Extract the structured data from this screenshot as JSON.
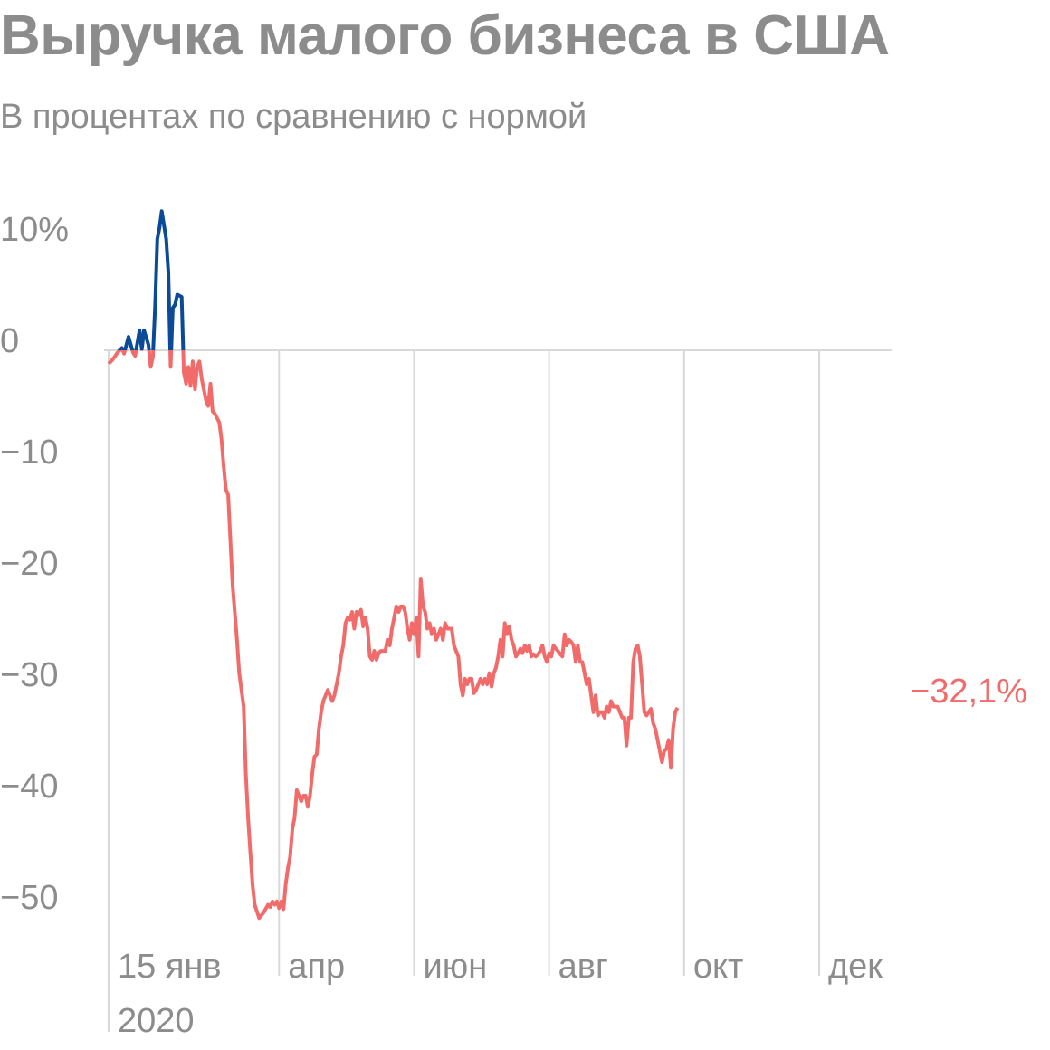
{
  "title": "Выручка малого бизнеса в США",
  "subtitle": "В процентах по сравнению с нормой",
  "colors": {
    "positive": "#0b4a96",
    "negative": "#f26b6b",
    "text": "#8c8c8c",
    "grid": "#d9d9d9"
  },
  "chart_data": {
    "type": "line",
    "title": "Выручка малого бизнеса в США",
    "subtitle": "В процентах по сравнению с нормой",
    "ylim": [
      -55,
      13
    ],
    "y_ticks": [
      {
        "value": 10,
        "label": "10%"
      },
      {
        "value": 0,
        "label": "0"
      },
      {
        "value": -10,
        "label": "−10"
      },
      {
        "value": -20,
        "label": "−20"
      },
      {
        "value": -30,
        "label": "−30"
      },
      {
        "value": -40,
        "label": "−40"
      },
      {
        "value": -50,
        "label": "−50"
      }
    ],
    "x_ticks": [
      {
        "date": "2020-01-15",
        "label": "15 янв",
        "sublabel": "2020"
      },
      {
        "date": "2020-04-01",
        "label": "апр"
      },
      {
        "date": "2020-06-01",
        "label": "июн"
      },
      {
        "date": "2020-08-01",
        "label": "авг"
      },
      {
        "date": "2020-10-01",
        "label": "окт"
      },
      {
        "date": "2020-12-01",
        "label": "дек"
      }
    ],
    "end_label": "−32,1%",
    "series": [
      {
        "values": [
          [
            "2020-01-15",
            -1.2
          ],
          [
            "2020-01-17",
            -0.8
          ],
          [
            "2020-01-19",
            -0.2
          ],
          [
            "2020-01-21",
            0.2
          ],
          [
            "2020-01-22",
            -0.3
          ],
          [
            "2020-01-24",
            1.2
          ],
          [
            "2020-01-26",
            -0.2
          ],
          [
            "2020-01-27",
            -0.5
          ],
          [
            "2020-01-29",
            1.8
          ],
          [
            "2020-01-30",
            0.1
          ],
          [
            "2020-01-31",
            1.8
          ],
          [
            "2020-02-02",
            0.5
          ],
          [
            "2020-02-03",
            -1.5
          ],
          [
            "2020-02-04",
            -0.6
          ],
          [
            "2020-02-05",
            4
          ],
          [
            "2020-02-06",
            10
          ],
          [
            "2020-02-07",
            11
          ],
          [
            "2020-02-08",
            12.5
          ],
          [
            "2020-02-10",
            10
          ],
          [
            "2020-02-11",
            7
          ],
          [
            "2020-02-12",
            -1.5
          ],
          [
            "2020-02-13",
            3.8
          ],
          [
            "2020-02-14",
            4.1
          ],
          [
            "2020-02-15",
            5
          ],
          [
            "2020-02-16",
            4.9
          ],
          [
            "2020-02-17",
            4.8
          ],
          [
            "2020-02-18",
            -2
          ],
          [
            "2020-02-19",
            -3
          ],
          [
            "2020-02-20",
            -1.5
          ],
          [
            "2020-02-21",
            -3.2
          ],
          [
            "2020-02-22",
            -1
          ],
          [
            "2020-02-23",
            -3.5
          ],
          [
            "2020-02-24",
            -1.5
          ],
          [
            "2020-02-25",
            -1
          ],
          [
            "2020-02-26",
            -2.5
          ],
          [
            "2020-02-28",
            -4.5
          ],
          [
            "2020-02-29",
            -5
          ],
          [
            "2020-03-01",
            -3
          ],
          [
            "2020-03-02",
            -5.5
          ],
          [
            "2020-03-03",
            -5.7
          ],
          [
            "2020-03-05",
            -6.5
          ],
          [
            "2020-03-06",
            -8
          ],
          [
            "2020-03-07",
            -10.5
          ],
          [
            "2020-03-08",
            -12.5
          ],
          [
            "2020-03-09",
            -13
          ],
          [
            "2020-03-10",
            -17
          ],
          [
            "2020-03-11",
            -21
          ],
          [
            "2020-03-13",
            -26
          ],
          [
            "2020-03-14",
            -29
          ],
          [
            "2020-03-16",
            -32
          ],
          [
            "2020-03-17",
            -38
          ],
          [
            "2020-03-18",
            -42
          ],
          [
            "2020-03-19",
            -45
          ],
          [
            "2020-03-20",
            -48
          ],
          [
            "2020-03-21",
            -49.8
          ],
          [
            "2020-03-23",
            -51
          ],
          [
            "2020-03-25",
            -50.5
          ],
          [
            "2020-03-27",
            -49.8
          ],
          [
            "2020-03-28",
            -50
          ],
          [
            "2020-03-29",
            -49.5
          ],
          [
            "2020-03-30",
            -49.8
          ],
          [
            "2020-03-31",
            -49.5
          ],
          [
            "2020-04-01",
            -50.1
          ],
          [
            "2020-04-02",
            -49.5
          ],
          [
            "2020-04-03",
            -50.2
          ],
          [
            "2020-04-04",
            -48
          ],
          [
            "2020-04-05",
            -46.5
          ],
          [
            "2020-04-06",
            -45.5
          ],
          [
            "2020-04-07",
            -43
          ],
          [
            "2020-04-08",
            -42
          ],
          [
            "2020-04-09",
            -39.5
          ],
          [
            "2020-04-10",
            -40
          ],
          [
            "2020-04-11",
            -40.5
          ],
          [
            "2020-04-12",
            -40
          ],
          [
            "2020-04-13",
            -40
          ],
          [
            "2020-04-14",
            -41
          ],
          [
            "2020-04-15",
            -40
          ],
          [
            "2020-04-16",
            -38
          ],
          [
            "2020-04-17",
            -36.5
          ],
          [
            "2020-04-18",
            -36.3
          ],
          [
            "2020-04-19",
            -34
          ],
          [
            "2020-04-20",
            -32.5
          ],
          [
            "2020-04-21",
            -31.5
          ],
          [
            "2020-04-22",
            -31
          ],
          [
            "2020-04-23",
            -30.5
          ],
          [
            "2020-04-24",
            -31
          ],
          [
            "2020-04-25",
            -31.5
          ],
          [
            "2020-04-26",
            -31
          ],
          [
            "2020-04-27",
            -30
          ],
          [
            "2020-04-28",
            -29
          ],
          [
            "2020-04-29",
            -27.5
          ],
          [
            "2020-04-30",
            -26.5
          ],
          [
            "2020-05-01",
            -24.5
          ],
          [
            "2020-05-02",
            -24
          ],
          [
            "2020-05-03",
            -24.2
          ],
          [
            "2020-05-04",
            -23.5
          ],
          [
            "2020-05-05",
            -25
          ],
          [
            "2020-05-06",
            -23.5
          ],
          [
            "2020-05-07",
            -23.8
          ],
          [
            "2020-05-08",
            -23.3
          ],
          [
            "2020-05-09",
            -24.8
          ],
          [
            "2020-05-10",
            -24
          ],
          [
            "2020-05-11",
            -25
          ],
          [
            "2020-05-12",
            -27.5
          ],
          [
            "2020-05-13",
            -27.8
          ],
          [
            "2020-05-14",
            -27
          ],
          [
            "2020-05-15",
            -27.8
          ],
          [
            "2020-05-16",
            -27.2
          ],
          [
            "2020-05-17",
            -27
          ],
          [
            "2020-05-18",
            -27
          ],
          [
            "2020-05-19",
            -27
          ],
          [
            "2020-05-20",
            -26
          ],
          [
            "2020-05-21",
            -26.5
          ],
          [
            "2020-05-22",
            -25
          ],
          [
            "2020-05-23",
            -24
          ],
          [
            "2020-05-24",
            -23
          ],
          [
            "2020-05-25",
            -23.5
          ],
          [
            "2020-05-26",
            -23
          ],
          [
            "2020-05-27",
            -23
          ],
          [
            "2020-05-28",
            -23.5
          ],
          [
            "2020-05-29",
            -25
          ],
          [
            "2020-05-30",
            -26
          ],
          [
            "2020-05-31",
            -24.5
          ],
          [
            "2020-06-01",
            -25.5
          ],
          [
            "2020-06-02",
            -24
          ],
          [
            "2020-06-03",
            -27.5
          ],
          [
            "2020-06-04",
            -20.5
          ],
          [
            "2020-06-05",
            -23
          ],
          [
            "2020-06-06",
            -23.5
          ],
          [
            "2020-06-07",
            -25
          ],
          [
            "2020-06-08",
            -24.5
          ],
          [
            "2020-06-09",
            -25.5
          ],
          [
            "2020-06-10",
            -25
          ],
          [
            "2020-06-11",
            -26
          ],
          [
            "2020-06-12",
            -25.5
          ],
          [
            "2020-06-13",
            -25
          ],
          [
            "2020-06-14",
            -26
          ],
          [
            "2020-06-15",
            -24.5
          ],
          [
            "2020-06-16",
            -25
          ],
          [
            "2020-06-17",
            -25
          ],
          [
            "2020-06-18",
            -25
          ],
          [
            "2020-06-19",
            -26.5
          ],
          [
            "2020-06-20",
            -27
          ],
          [
            "2020-06-21",
            -27.5
          ],
          [
            "2020-06-22",
            -30
          ],
          [
            "2020-06-23",
            -31
          ],
          [
            "2020-06-24",
            -29.5
          ],
          [
            "2020-06-25",
            -30
          ],
          [
            "2020-06-26",
            -29.5
          ],
          [
            "2020-06-27",
            -29.5
          ],
          [
            "2020-06-28",
            -30.8
          ],
          [
            "2020-06-29",
            -30.5
          ],
          [
            "2020-06-30",
            -30
          ],
          [
            "2020-07-01",
            -29.5
          ],
          [
            "2020-07-02",
            -30
          ],
          [
            "2020-07-03",
            -29.5
          ],
          [
            "2020-07-04",
            -30
          ],
          [
            "2020-07-05",
            -29
          ],
          [
            "2020-07-06",
            -30.2
          ],
          [
            "2020-07-07",
            -29
          ],
          [
            "2020-07-08",
            -28.5
          ],
          [
            "2020-07-09",
            -27.5
          ],
          [
            "2020-07-10",
            -26
          ],
          [
            "2020-07-11",
            -27.5
          ],
          [
            "2020-07-12",
            -24.5
          ],
          [
            "2020-07-13",
            -25.5
          ],
          [
            "2020-07-14",
            -24.8
          ],
          [
            "2020-07-15",
            -26
          ],
          [
            "2020-07-16",
            -26.5
          ],
          [
            "2020-07-17",
            -27.5
          ],
          [
            "2020-07-18",
            -27.2
          ],
          [
            "2020-07-19",
            -26.8
          ],
          [
            "2020-07-20",
            -27.2
          ],
          [
            "2020-07-21",
            -26.5
          ],
          [
            "2020-07-22",
            -27
          ],
          [
            "2020-07-23",
            -26.5
          ],
          [
            "2020-07-24",
            -27.5
          ],
          [
            "2020-07-25",
            -27.3
          ],
          [
            "2020-07-26",
            -27.5
          ],
          [
            "2020-07-27",
            -27.3
          ],
          [
            "2020-07-28",
            -27
          ],
          [
            "2020-07-29",
            -26.5
          ],
          [
            "2020-07-30",
            -27.5
          ],
          [
            "2020-07-31",
            -28
          ],
          [
            "2020-08-01",
            -27.2
          ],
          [
            "2020-08-02",
            -27.5
          ],
          [
            "2020-08-03",
            -26.5
          ],
          [
            "2020-08-04",
            -26.8
          ],
          [
            "2020-08-05",
            -27
          ],
          [
            "2020-08-06",
            -27.3
          ],
          [
            "2020-08-07",
            -27.5
          ],
          [
            "2020-08-08",
            -25.5
          ],
          [
            "2020-08-09",
            -26.5
          ],
          [
            "2020-08-10",
            -26
          ],
          [
            "2020-08-11",
            -26.2
          ],
          [
            "2020-08-12",
            -26.5
          ],
          [
            "2020-08-13",
            -28
          ],
          [
            "2020-08-14",
            -26.5
          ],
          [
            "2020-08-15",
            -28
          ],
          [
            "2020-08-16",
            -28
          ],
          [
            "2020-08-17",
            -29
          ],
          [
            "2020-08-18",
            -30
          ],
          [
            "2020-08-19",
            -29.5
          ],
          [
            "2020-08-20",
            -31
          ],
          [
            "2020-08-21",
            -32.5
          ],
          [
            "2020-08-22",
            -31
          ],
          [
            "2020-08-23",
            -32.8
          ],
          [
            "2020-08-24",
            -32.5
          ],
          [
            "2020-08-25",
            -32.5
          ],
          [
            "2020-08-26",
            -33
          ],
          [
            "2020-08-27",
            -32
          ],
          [
            "2020-08-28",
            -32.5
          ],
          [
            "2020-08-29",
            -31.5
          ],
          [
            "2020-08-30",
            -32
          ],
          [
            "2020-08-31",
            -32
          ],
          [
            "2020-09-01",
            -32
          ],
          [
            "2020-09-02",
            -32.5
          ],
          [
            "2020-09-03",
            -33
          ],
          [
            "2020-09-04",
            -33
          ],
          [
            "2020-09-05",
            -35.5
          ],
          [
            "2020-09-06",
            -33
          ],
          [
            "2020-09-07",
            -33
          ],
          [
            "2020-09-08",
            -28
          ],
          [
            "2020-09-09",
            -26.8
          ],
          [
            "2020-09-10",
            -26.5
          ],
          [
            "2020-09-11",
            -27.5
          ],
          [
            "2020-09-12",
            -30
          ],
          [
            "2020-09-13",
            -32.5
          ],
          [
            "2020-09-14",
            -32.8
          ],
          [
            "2020-09-15",
            -32.5
          ],
          [
            "2020-09-16",
            -32.2
          ],
          [
            "2020-09-17",
            -33.5
          ],
          [
            "2020-09-18",
            -34
          ],
          [
            "2020-09-19",
            -35
          ],
          [
            "2020-09-20",
            -36
          ],
          [
            "2020-09-21",
            -37
          ],
          [
            "2020-09-22",
            -36
          ],
          [
            "2020-09-23",
            -35.8
          ],
          [
            "2020-09-24",
            -35
          ],
          [
            "2020-09-25",
            -37.5
          ],
          [
            "2020-09-26",
            -34
          ],
          [
            "2020-09-27",
            -32.5
          ],
          [
            "2020-09-28",
            -32.1
          ]
        ]
      }
    ]
  }
}
